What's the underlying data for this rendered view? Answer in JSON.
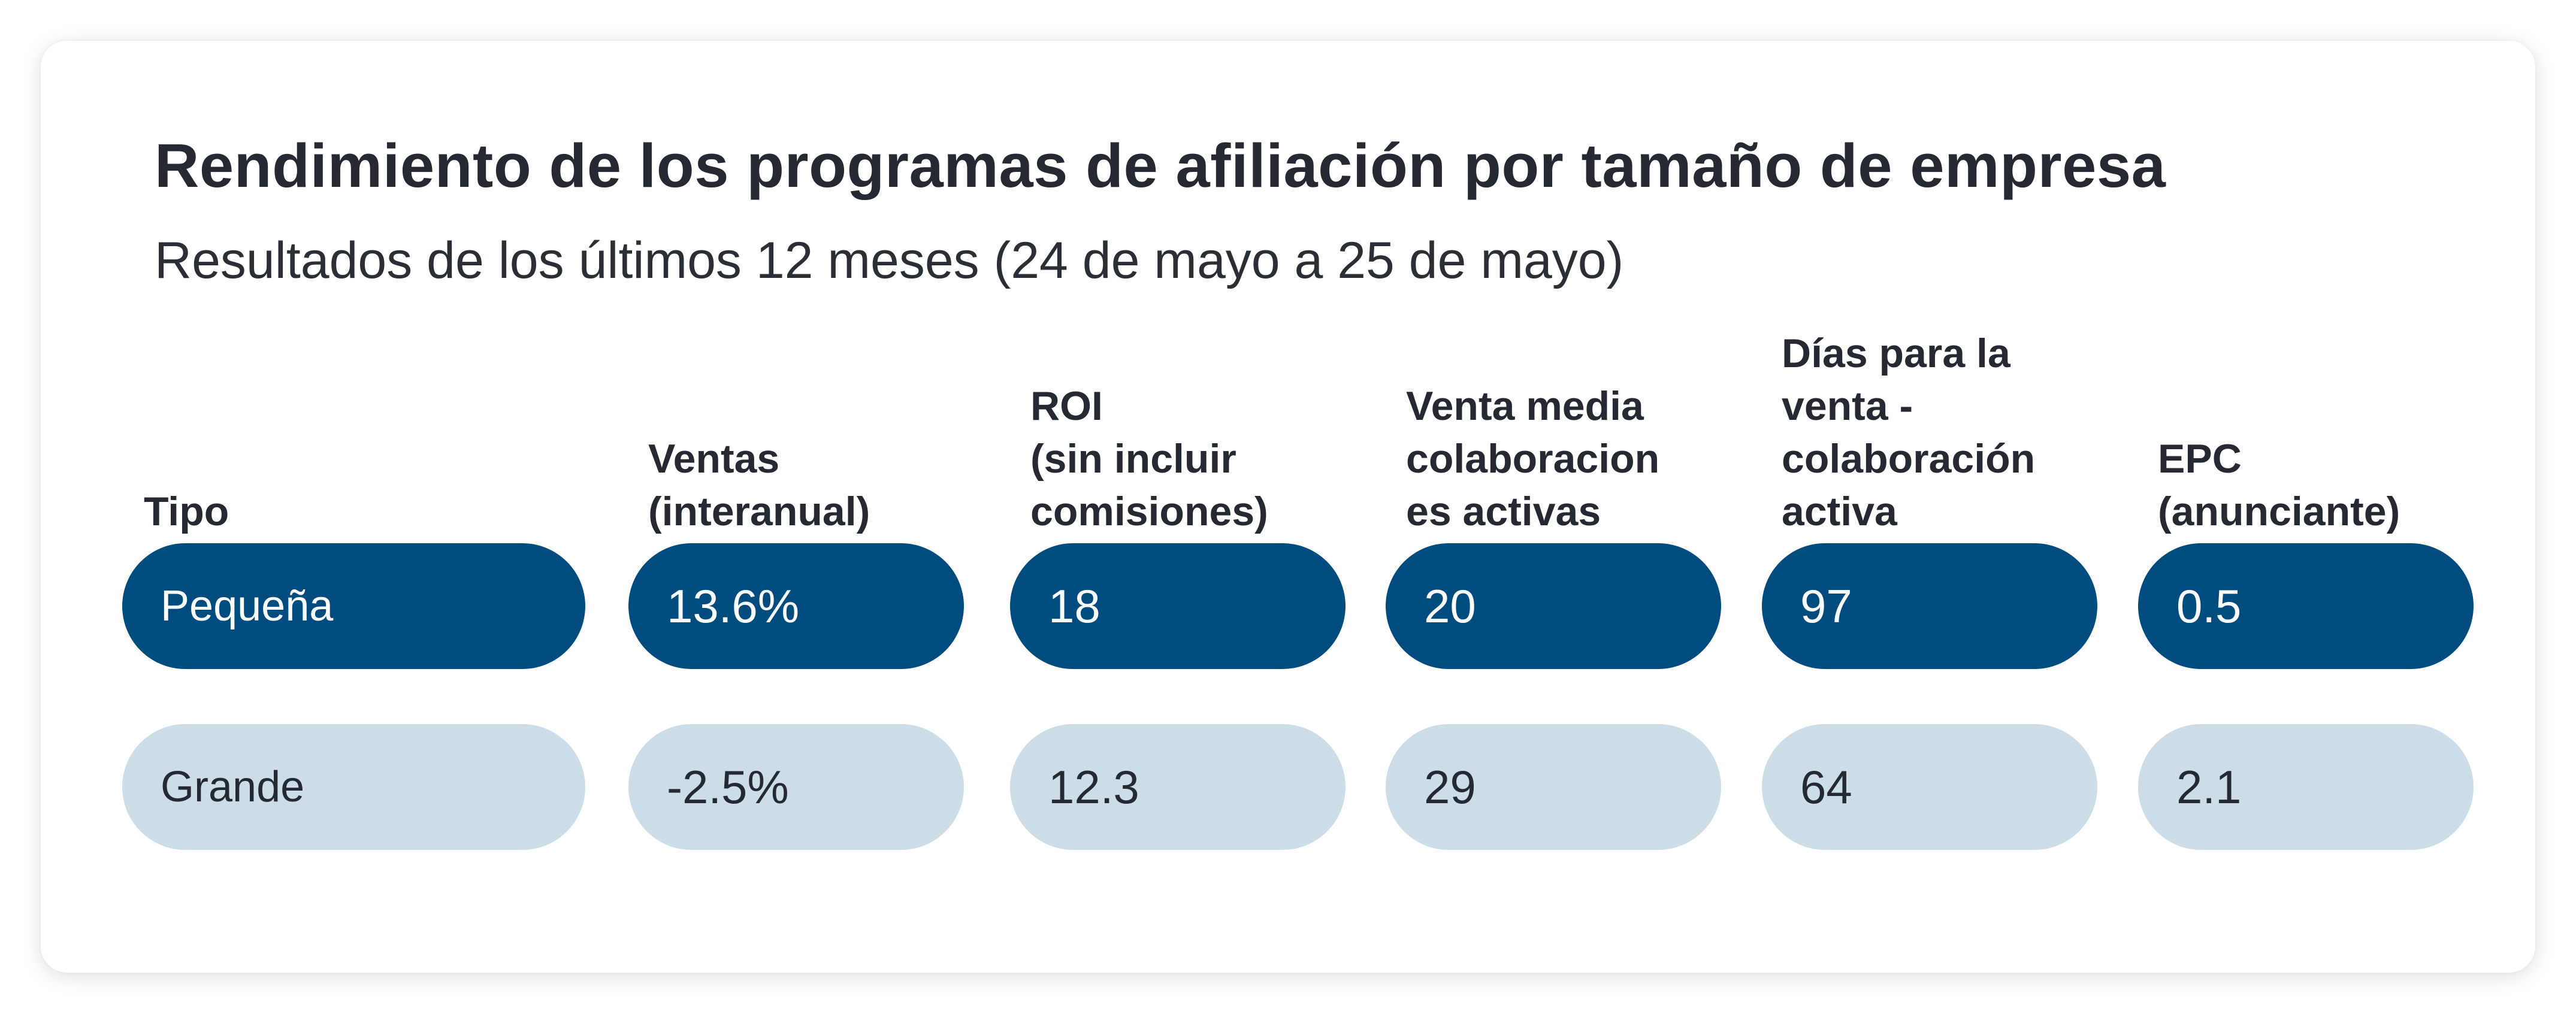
{
  "title": "Rendimiento de los programas de afiliación por tamaño de empresa",
  "subtitle": "Resultados de los últimos 12 meses (24 de mayo a 25 de mayo)",
  "colors": {
    "small_fill": "#004c7f",
    "large_fill": "#ccdde8"
  },
  "chart_data": {
    "type": "table",
    "title": "Rendimiento de los programas de afiliación por tamaño de empresa",
    "subtitle": "Resultados de los últimos 12 meses (24 de mayo a 25 de mayo)",
    "columns": [
      {
        "key": "tipo",
        "lines": [
          "Tipo"
        ]
      },
      {
        "key": "ventas",
        "lines": [
          "Ventas",
          "(interanual)"
        ]
      },
      {
        "key": "roi",
        "lines": [
          "ROI",
          "(sin incluir",
          "comisiones)"
        ]
      },
      {
        "key": "venta_media",
        "lines": [
          "Venta media",
          "colaboracion",
          "es activas"
        ]
      },
      {
        "key": "dias",
        "lines": [
          "Días para la",
          "venta -",
          "colaboración",
          "activa"
        ]
      },
      {
        "key": "epc",
        "lines": [
          "EPC",
          "(anunciante)"
        ]
      }
    ],
    "rows": [
      {
        "tipo": "Pequeña",
        "ventas": "13.6%",
        "roi": "18",
        "venta_media": "20",
        "dias": "97",
        "epc": "0.5"
      },
      {
        "tipo": "Grande",
        "ventas": "-2.5%",
        "roi": "12.3",
        "venta_media": "29",
        "dias": "64",
        "epc": "2.1"
      }
    ]
  }
}
